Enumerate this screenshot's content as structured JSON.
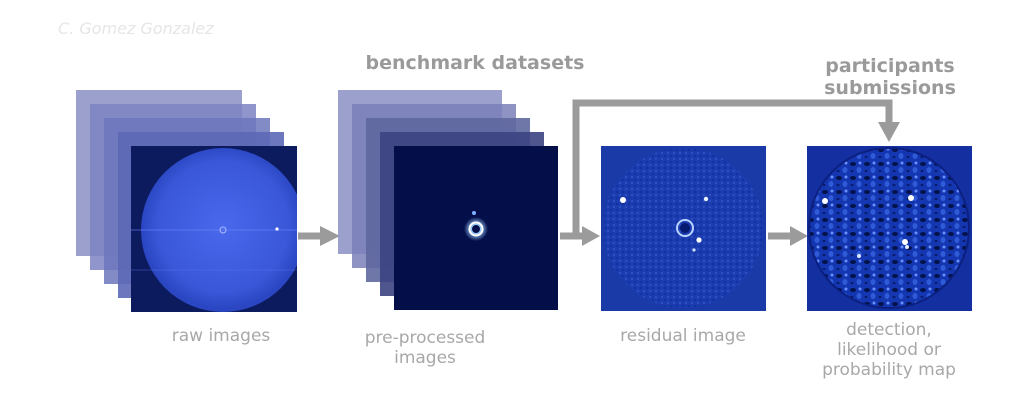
{
  "credit": "C. Gomez Gonzalez",
  "headings": {
    "benchmark": "benchmark datasets",
    "participants_line1": "participants",
    "participants_line2": "submissions"
  },
  "captions": {
    "raw": "raw images",
    "preprocessed_line1": "pre-processed",
    "preprocessed_line2": "images",
    "residual": "residual image",
    "detection_line1": "detection,",
    "detection_line2": "likelihood or",
    "detection_line3": "probability map"
  },
  "colors": {
    "arrow": "#9b9b9b",
    "raw_bg": "#0c1a5e",
    "raw_disk": "#3b5ae0",
    "preproc_bg": "#040f4a",
    "residual_bg": "#1a3aa8",
    "detection_bg": "#142fa0",
    "stack_layer": "#7a80b8"
  }
}
